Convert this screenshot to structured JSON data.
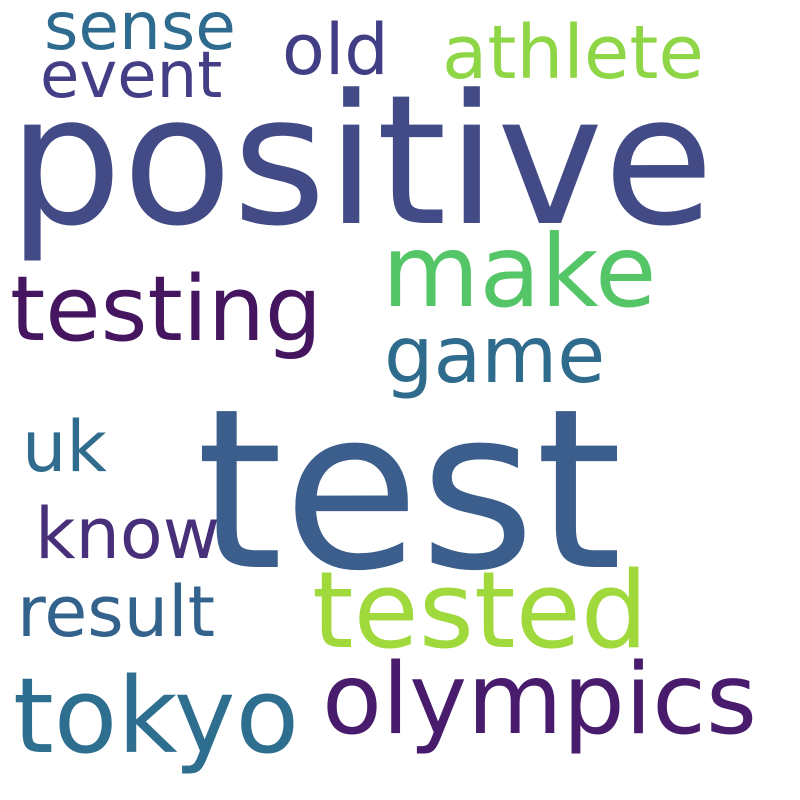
{
  "word_cloud": {
    "words": [
      {
        "text": "test",
        "color": "#3b5e8c"
      },
      {
        "text": "positive",
        "color": "#424b86"
      },
      {
        "text": "tested",
        "color": "#a0d93c"
      },
      {
        "text": "olympics",
        "color": "#481b6d"
      },
      {
        "text": "tokyo",
        "color": "#2e6e8e"
      },
      {
        "text": "make",
        "color": "#55c667"
      },
      {
        "text": "testing",
        "color": "#451560"
      },
      {
        "text": "game",
        "color": "#2f6b8d"
      },
      {
        "text": "result",
        "color": "#33638d"
      },
      {
        "text": "know",
        "color": "#482f7a"
      },
      {
        "text": "athlete",
        "color": "#8ed645"
      },
      {
        "text": "uk",
        "color": "#2f6c8e"
      },
      {
        "text": "old",
        "color": "#423e85"
      },
      {
        "text": "sense",
        "color": "#2f6b8e"
      },
      {
        "text": "event",
        "color": "#433e85"
      }
    ]
  }
}
